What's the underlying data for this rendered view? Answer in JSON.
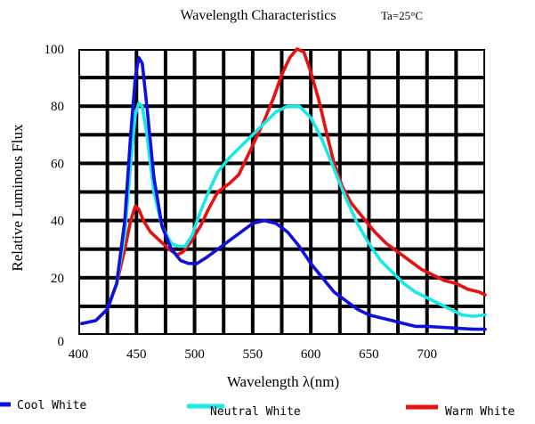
{
  "chart_data": {
    "type": "line",
    "title": "Wavelength Characteristics",
    "subtitle": "Ta=25°C",
    "xlabel": "Wavelength λ(nm)",
    "ylabel": "Relative Luminous Flux",
    "xlim": [
      400,
      750
    ],
    "ylim": [
      0,
      100
    ],
    "x_ticks": [
      "400",
      "450",
      "500",
      "550",
      "600",
      "650",
      "700"
    ],
    "y_ticks": [
      "0",
      "20",
      "40",
      "60",
      "80",
      "100"
    ],
    "grid": true,
    "legend_position": "bottom",
    "series": [
      {
        "name": "Cool White",
        "color": "#1010e0",
        "points": [
          [
            403,
            4
          ],
          [
            415,
            5
          ],
          [
            425,
            9
          ],
          [
            433,
            18
          ],
          [
            440,
            40
          ],
          [
            445,
            70
          ],
          [
            449,
            90
          ],
          [
            452,
            97
          ],
          [
            455,
            95
          ],
          [
            459,
            80
          ],
          [
            465,
            55
          ],
          [
            472,
            38
          ],
          [
            480,
            30
          ],
          [
            488,
            26
          ],
          [
            495,
            25
          ],
          [
            502,
            25
          ],
          [
            510,
            27
          ],
          [
            520,
            30
          ],
          [
            530,
            33
          ],
          [
            540,
            36
          ],
          [
            550,
            39
          ],
          [
            560,
            40
          ],
          [
            570,
            39
          ],
          [
            580,
            36
          ],
          [
            590,
            31
          ],
          [
            600,
            25
          ],
          [
            610,
            20
          ],
          [
            620,
            15
          ],
          [
            630,
            12
          ],
          [
            640,
            9
          ],
          [
            650,
            7
          ],
          [
            660,
            6
          ],
          [
            670,
            5
          ],
          [
            680,
            4
          ],
          [
            690,
            3
          ],
          [
            700,
            3
          ],
          [
            720,
            2.5
          ],
          [
            740,
            2
          ],
          [
            750,
            2
          ]
        ]
      },
      {
        "name": "Neutral White",
        "color": "#18e8e8",
        "points": [
          [
            403,
            4
          ],
          [
            415,
            5
          ],
          [
            425,
            9
          ],
          [
            433,
            18
          ],
          [
            440,
            35
          ],
          [
            445,
            60
          ],
          [
            449,
            77
          ],
          [
            452,
            81
          ],
          [
            455,
            80
          ],
          [
            459,
            70
          ],
          [
            465,
            50
          ],
          [
            472,
            38
          ],
          [
            480,
            32
          ],
          [
            486,
            31
          ],
          [
            492,
            31
          ],
          [
            498,
            35
          ],
          [
            505,
            43
          ],
          [
            512,
            50
          ],
          [
            520,
            57
          ],
          [
            530,
            62
          ],
          [
            540,
            66
          ],
          [
            550,
            70
          ],
          [
            560,
            74
          ],
          [
            570,
            78
          ],
          [
            580,
            80
          ],
          [
            590,
            80
          ],
          [
            600,
            76
          ],
          [
            610,
            68
          ],
          [
            620,
            58
          ],
          [
            630,
            48
          ],
          [
            640,
            39
          ],
          [
            650,
            32
          ],
          [
            660,
            26
          ],
          [
            670,
            22
          ],
          [
            680,
            18
          ],
          [
            690,
            15
          ],
          [
            700,
            13
          ],
          [
            710,
            11
          ],
          [
            720,
            9
          ],
          [
            730,
            7
          ],
          [
            740,
            6.5
          ],
          [
            750,
            7
          ]
        ]
      },
      {
        "name": "Warm White",
        "color": "#e81010",
        "points": [
          [
            403,
            4
          ],
          [
            415,
            5
          ],
          [
            425,
            9
          ],
          [
            433,
            18
          ],
          [
            440,
            30
          ],
          [
            445,
            40
          ],
          [
            449,
            45
          ],
          [
            452,
            44
          ],
          [
            456,
            40
          ],
          [
            462,
            36
          ],
          [
            470,
            33
          ],
          [
            478,
            30
          ],
          [
            485,
            28
          ],
          [
            490,
            29
          ],
          [
            496,
            32
          ],
          [
            505,
            38
          ],
          [
            512,
            44
          ],
          [
            520,
            50
          ],
          [
            530,
            53
          ],
          [
            538,
            56
          ],
          [
            545,
            62
          ],
          [
            552,
            68
          ],
          [
            560,
            75
          ],
          [
            568,
            83
          ],
          [
            575,
            91
          ],
          [
            582,
            97
          ],
          [
            588,
            100
          ],
          [
            594,
            99
          ],
          [
            600,
            92
          ],
          [
            607,
            82
          ],
          [
            614,
            70
          ],
          [
            620,
            60
          ],
          [
            627,
            52
          ],
          [
            635,
            46
          ],
          [
            645,
            41
          ],
          [
            655,
            36
          ],
          [
            665,
            32
          ],
          [
            675,
            29
          ],
          [
            685,
            26
          ],
          [
            695,
            23
          ],
          [
            705,
            21
          ],
          [
            715,
            19
          ],
          [
            725,
            18
          ],
          [
            735,
            16
          ],
          [
            745,
            15
          ],
          [
            750,
            14
          ]
        ]
      }
    ]
  }
}
